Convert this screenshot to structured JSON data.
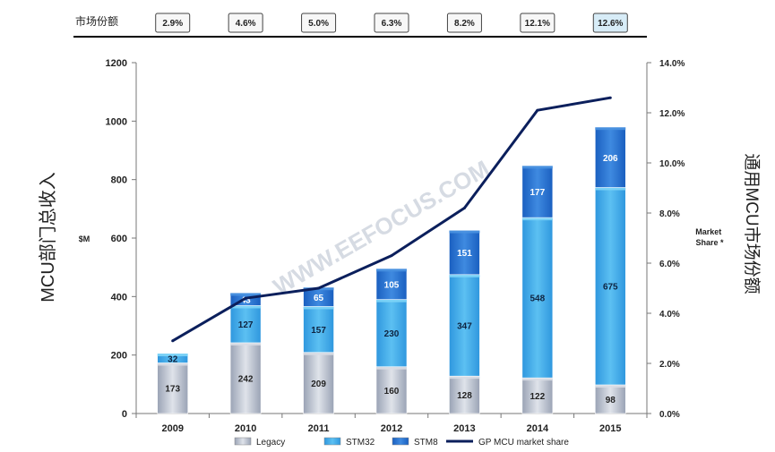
{
  "share_row": {
    "label": "市场份额",
    "values": [
      "2.9%",
      "4.6%",
      "5.0%",
      "6.3%",
      "8.2%",
      "12.1%",
      "12.6%"
    ]
  },
  "watermark": "WWW.EEFOCUS.COM",
  "chart_data": {
    "type": "bar",
    "stacked": true,
    "categories": [
      "2009",
      "2010",
      "2011",
      "2012",
      "2013",
      "2014",
      "2015"
    ],
    "series": [
      {
        "name": "Legacy",
        "values": [
          173,
          242,
          209,
          160,
          128,
          122,
          98
        ],
        "color": "#b8c0cf"
      },
      {
        "name": "STM32",
        "values": [
          32,
          127,
          157,
          230,
          347,
          548,
          675
        ],
        "color": "#3aa9ea"
      },
      {
        "name": "STM8",
        "values": [
          0,
          43,
          65,
          105,
          151,
          177,
          206
        ],
        "color": "#1f6fd0"
      }
    ],
    "line_series": {
      "name": "GP MCU market share",
      "values": [
        2.9,
        4.6,
        5.0,
        6.3,
        8.2,
        12.1,
        12.6
      ],
      "color": "#0b1f5c",
      "axis": "right"
    },
    "ylabel": "MCU部门总收入",
    "ylabel_unit": "$M",
    "ylim": [
      0,
      1200
    ],
    "yticks": [
      "0",
      "200",
      "400",
      "600",
      "800",
      "1000",
      "1200"
    ],
    "y2label": "通用MCU市场份额",
    "y2label_note": "Market Share *",
    "y2lim": [
      0,
      14
    ],
    "y2ticks": [
      "0.0%",
      "2.0%",
      "4.0%",
      "6.0%",
      "8.0%",
      "10.0%",
      "12.0%",
      "14.0%"
    ],
    "legend_position": "bottom",
    "grid": false
  }
}
